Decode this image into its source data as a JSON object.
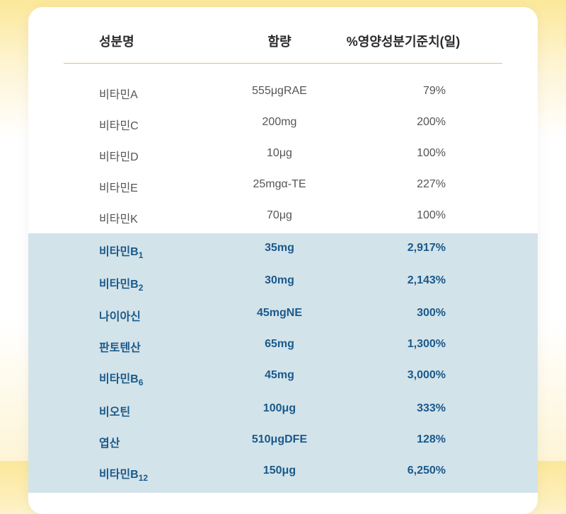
{
  "nutrition_table": {
    "type": "table",
    "background_gradient": [
      "#fce89a",
      "#ffffff",
      "#fef5d6"
    ],
    "card_background": "#ffffff",
    "card_border_radius": 20,
    "header_border_color": "#e0c080",
    "normal_text_color": "#555555",
    "highlighted_bg_color": "#d3e3ea",
    "highlighted_text_color": "#1a5a8a",
    "header_text_color": "#2a2a2a",
    "header_fontsize": 18,
    "row_fontsize": 16,
    "columns": [
      "성분명",
      "함량",
      "%영양성분기준치(일)"
    ],
    "rows": [
      {
        "name": "비타민A",
        "amount": "555μgRAE",
        "percent": "79%",
        "highlighted": false
      },
      {
        "name": "비타민C",
        "amount": "200mg",
        "percent": "200%",
        "highlighted": false
      },
      {
        "name": "비타민D",
        "amount": "10μg",
        "percent": "100%",
        "highlighted": false
      },
      {
        "name": "비타민E",
        "amount": "25mgα-TE",
        "percent": "227%",
        "highlighted": false
      },
      {
        "name": "비타민K",
        "amount": "70μg",
        "percent": "100%",
        "highlighted": false
      },
      {
        "name": "비타민B₁",
        "amount": "35mg",
        "percent": "2,917%",
        "highlighted": true
      },
      {
        "name": "비타민B₂",
        "amount": "30mg",
        "percent": "2,143%",
        "highlighted": true
      },
      {
        "name": "나이아신",
        "amount": "45mgNE",
        "percent": "300%",
        "highlighted": true
      },
      {
        "name": "판토텐산",
        "amount": "65mg",
        "percent": "1,300%",
        "highlighted": true
      },
      {
        "name": "비타민B₆",
        "amount": "45mg",
        "percent": "3,000%",
        "highlighted": true
      },
      {
        "name": "비오틴",
        "amount": "100μg",
        "percent": "333%",
        "highlighted": true
      },
      {
        "name": "엽산",
        "amount": "510μgDFE",
        "percent": "128%",
        "highlighted": true
      },
      {
        "name": "비타민B₁₂",
        "amount": "150μg",
        "percent": "6,250%",
        "highlighted": true
      }
    ]
  }
}
